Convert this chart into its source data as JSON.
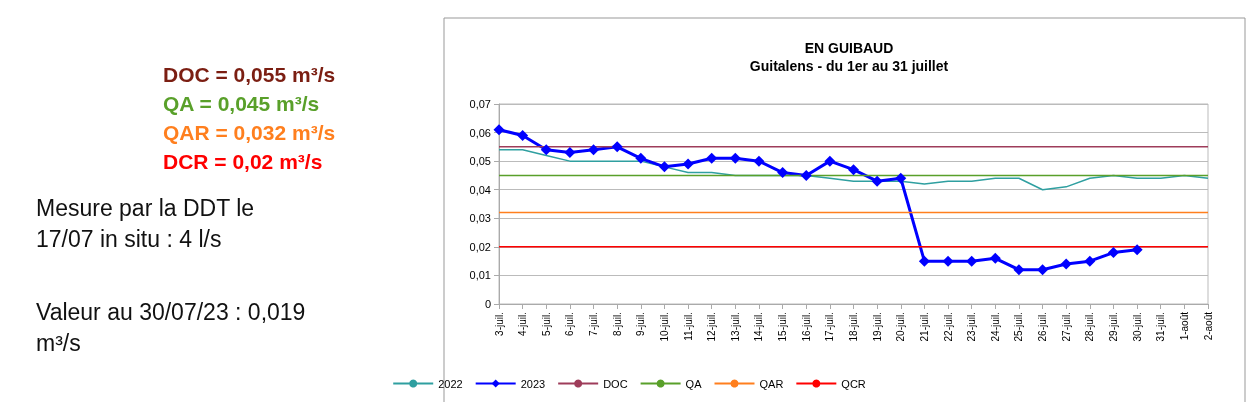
{
  "chart_data": {
    "type": "line",
    "title": "EN GUIBAUD",
    "subtitle": "Guitalens - du 1er au 31 juillet",
    "categories": [
      "3-juil.",
      "4-juil.",
      "5-juil.",
      "6-juil.",
      "7-juil.",
      "8-juil.",
      "9-juil.",
      "10-juil.",
      "11-juil.",
      "12-juil.",
      "13-juil.",
      "14-juil.",
      "15-juil.",
      "16-juil.",
      "17-juil.",
      "18-juil.",
      "19-juil.",
      "20-juil.",
      "21-juil.",
      "22-juil.",
      "23-juil.",
      "24-juil.",
      "25-juil.",
      "26-juil.",
      "27-juil.",
      "28-juil.",
      "29-juil.",
      "30-juil.",
      "31-juil.",
      "1-août",
      "2-août"
    ],
    "series": [
      {
        "name": "2022",
        "color": "#2f9fa0",
        "marker": "none",
        "values": [
          0.054,
          0.054,
          0.052,
          0.05,
          0.05,
          0.05,
          0.05,
          0.048,
          0.046,
          0.046,
          0.045,
          0.045,
          0.045,
          0.045,
          0.044,
          0.043,
          0.043,
          0.043,
          0.042,
          0.043,
          0.043,
          0.044,
          0.044,
          0.04,
          0.041,
          0.044,
          0.045,
          0.044,
          0.044,
          0.045,
          0.044
        ]
      },
      {
        "name": "2023",
        "color": "#0000ff",
        "marker": "diamond",
        "values": [
          0.061,
          0.059,
          0.054,
          0.053,
          0.054,
          0.055,
          0.051,
          0.048,
          0.049,
          0.051,
          0.051,
          0.05,
          0.046,
          0.045,
          0.05,
          0.047,
          0.043,
          0.044,
          0.015,
          0.015,
          0.015,
          0.016,
          0.012,
          0.012,
          0.014,
          0.015,
          0.018,
          0.019,
          null,
          null,
          null
        ]
      },
      {
        "name": "DOC",
        "color": "#9e3c5a",
        "marker": "none",
        "values": [
          0.055,
          0.055,
          0.055,
          0.055,
          0.055,
          0.055,
          0.055,
          0.055,
          0.055,
          0.055,
          0.055,
          0.055,
          0.055,
          0.055,
          0.055,
          0.055,
          0.055,
          0.055,
          0.055,
          0.055,
          0.055,
          0.055,
          0.055,
          0.055,
          0.055,
          0.055,
          0.055,
          0.055,
          0.055,
          0.055,
          0.055
        ]
      },
      {
        "name": "QA",
        "color": "#59a02a",
        "marker": "none",
        "values": [
          0.045,
          0.045,
          0.045,
          0.045,
          0.045,
          0.045,
          0.045,
          0.045,
          0.045,
          0.045,
          0.045,
          0.045,
          0.045,
          0.045,
          0.045,
          0.045,
          0.045,
          0.045,
          0.045,
          0.045,
          0.045,
          0.045,
          0.045,
          0.045,
          0.045,
          0.045,
          0.045,
          0.045,
          0.045,
          0.045,
          0.045
        ]
      },
      {
        "name": "QAR",
        "color": "#ff7f1e",
        "marker": "none",
        "values": [
          0.032,
          0.032,
          0.032,
          0.032,
          0.032,
          0.032,
          0.032,
          0.032,
          0.032,
          0.032,
          0.032,
          0.032,
          0.032,
          0.032,
          0.032,
          0.032,
          0.032,
          0.032,
          0.032,
          0.032,
          0.032,
          0.032,
          0.032,
          0.032,
          0.032,
          0.032,
          0.032,
          0.032,
          0.032,
          0.032,
          0.032
        ]
      },
      {
        "name": "QCR",
        "color": "#ff0000",
        "marker": "none",
        "values": [
          0.02,
          0.02,
          0.02,
          0.02,
          0.02,
          0.02,
          0.02,
          0.02,
          0.02,
          0.02,
          0.02,
          0.02,
          0.02,
          0.02,
          0.02,
          0.02,
          0.02,
          0.02,
          0.02,
          0.02,
          0.02,
          0.02,
          0.02,
          0.02,
          0.02,
          0.02,
          0.02,
          0.02,
          0.02,
          0.02,
          0.02
        ]
      }
    ],
    "ylim": [
      0,
      0.07
    ],
    "yticks": [
      {
        "value": 0,
        "label": "0"
      },
      {
        "value": 0.01,
        "label": "0,01"
      },
      {
        "value": 0.02,
        "label": "0,02"
      },
      {
        "value": 0.03,
        "label": "0,03"
      },
      {
        "value": 0.04,
        "label": "0,04"
      },
      {
        "value": 0.05,
        "label": "0,05"
      },
      {
        "value": 0.06,
        "label": "0,06"
      },
      {
        "value": 0.07,
        "label": "0,07"
      }
    ],
    "grid": "y",
    "legend": "bottom",
    "annotations": [
      "DOC = 0,055 m³/s",
      "QA = 0,045 m³/s",
      "QAR = 0,032 m³/s",
      "DCR = 0,02 m³/s",
      "Mesure par la DDT le\n17/07 in situ : 4 l/s",
      "Valeur au 30/07/23 : 0,019\nm³/s"
    ]
  }
}
